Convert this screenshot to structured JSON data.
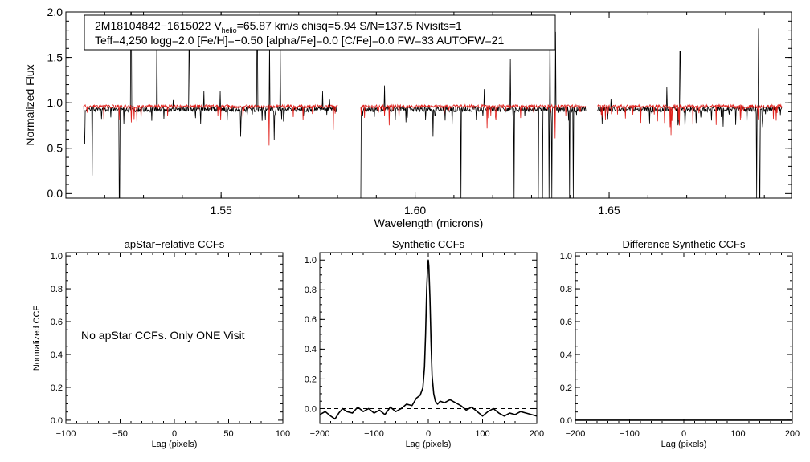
{
  "colors": {
    "observed": "#000000",
    "model": "#e0201b",
    "axis": "#000000"
  },
  "chart_data": [
    {
      "type": "line",
      "name": "spectrum",
      "xlabel": "Wavelength (microns)",
      "ylabel": "Normalized Flux",
      "xlim": [
        1.51,
        1.697
      ],
      "ylim": [
        -0.05,
        2.0
      ],
      "xticks": [
        1.55,
        1.6,
        1.65
      ],
      "xtick_labels": [
        "1.55",
        "1.60",
        "1.65"
      ],
      "yticks": [
        0.0,
        0.5,
        1.0,
        1.5,
        2.0
      ],
      "ytick_labels": [
        "0.0",
        "0.5",
        "1.0",
        "1.5",
        "2.0"
      ],
      "chips": [
        [
          1.5145,
          1.58
        ],
        [
          1.586,
          1.644
        ],
        [
          1.647,
          1.6945
        ]
      ],
      "info": {
        "line1_id": "2M18104842−1615022",
        "line1_v": "V",
        "line1_vsub": "helio",
        "line1_rest": "=65.87 km/s  chisq=5.94  S/N=137.5  Nvisits=1",
        "line2": "Teff=4,250 logg=2.0 [Fe/H]=−0.50 [alpha/Fe]=0.0 [C/Fe]=0.0 FW=33 AUTOFW=21"
      },
      "series": [
        {
          "name": "observed",
          "level": 0.93,
          "noise": 0.03,
          "spikes": [
            [
              1.5268,
              2.02
            ],
            [
              1.5335,
              1.95
            ],
            [
              1.5418,
              1.65
            ],
            [
              1.5593,
              1.72
            ],
            [
              1.5625,
              1.68
            ],
            [
              1.5652,
              1.63
            ],
            [
              1.6245,
              1.48
            ],
            [
              1.6348,
              1.96
            ],
            [
              1.6362,
              1.78
            ],
            [
              1.6683,
              1.57
            ],
            [
              1.6885,
              1.82
            ]
          ],
          "drops": [
            [
              1.5168,
              0.2
            ],
            [
              1.5148,
              0.55
            ],
            [
              1.5238,
              -0.05
            ],
            [
              1.586,
              -0.05
            ],
            [
              1.6118,
              -0.05
            ],
            [
              1.6255,
              -0.05
            ],
            [
              1.6318,
              -0.05
            ],
            [
              1.6328,
              -0.05
            ],
            [
              1.6345,
              -0.05
            ],
            [
              1.6352,
              -0.05
            ],
            [
              1.6398,
              -0.05
            ],
            [
              1.6408,
              -0.05
            ],
            [
              1.688,
              -0.05
            ],
            [
              1.6888,
              -0.05
            ]
          ]
        },
        {
          "name": "model",
          "level": 0.96,
          "noise": 0.018
        }
      ]
    },
    {
      "type": "line",
      "name": "apstar-ccf",
      "title": "apStar−relative CCFs",
      "xlabel": "Lag (pixels)",
      "ylabel": "Normalized CCF",
      "xlim": [
        -100,
        100
      ],
      "ylim": [
        -0.02,
        1.02
      ],
      "xticks": [
        -100,
        -50,
        0,
        50,
        100
      ],
      "xtick_labels": [
        "−100",
        "−50",
        "0",
        "50",
        "100"
      ],
      "yticks": [
        0.0,
        0.2,
        0.4,
        0.6,
        0.8,
        1.0
      ],
      "ytick_labels": [
        "0.0",
        "0.2",
        "0.4",
        "0.6",
        "0.8",
        "1.0"
      ],
      "message": "No apStar CCFs.  Only ONE Visit",
      "series": []
    },
    {
      "type": "line",
      "name": "synthetic-ccf",
      "title": "Synthetic CCFs",
      "xlabel": "Lag (pixels)",
      "ylabel": "",
      "xlim": [
        -200,
        200
      ],
      "ylim": [
        -0.1,
        1.05
      ],
      "xticks": [
        -200,
        -100,
        0,
        100,
        200
      ],
      "xtick_labels": [
        "−200",
        "−100",
        "0",
        "100",
        "200"
      ],
      "yticks": [
        0.0,
        0.2,
        0.4,
        0.6,
        0.8,
        1.0
      ],
      "ytick_labels": [
        "0.0",
        "0.2",
        "0.4",
        "0.6",
        "0.8",
        "1.0"
      ],
      "baseline": 0.0,
      "series": [
        {
          "name": "ccf",
          "x": [
            -200,
            -190,
            -180,
            -172,
            -165,
            -158,
            -150,
            -140,
            -130,
            -120,
            -110,
            -100,
            -90,
            -80,
            -70,
            -60,
            -50,
            -40,
            -30,
            -22,
            -15,
            -10,
            -7,
            -5,
            -3,
            -1,
            0,
            1,
            3,
            5,
            7,
            10,
            13,
            17,
            22,
            30,
            40,
            50,
            60,
            70,
            80,
            90,
            100,
            110,
            120,
            130,
            140,
            150,
            160,
            170,
            180,
            190,
            200
          ],
          "y": [
            -0.04,
            -0.02,
            -0.05,
            -0.07,
            -0.03,
            0.0,
            -0.02,
            -0.03,
            0.01,
            -0.02,
            0.0,
            -0.03,
            -0.01,
            -0.04,
            0.01,
            -0.02,
            0.0,
            0.03,
            0.02,
            0.07,
            0.09,
            0.14,
            0.28,
            0.5,
            0.8,
            0.97,
            1.0,
            0.96,
            0.75,
            0.45,
            0.22,
            0.1,
            0.05,
            0.03,
            0.05,
            0.04,
            0.06,
            0.04,
            0.02,
            -0.01,
            0.01,
            -0.02,
            -0.05,
            -0.02,
            0.0,
            -0.03,
            -0.05,
            -0.03,
            -0.04,
            -0.02,
            -0.03,
            -0.04,
            -0.05
          ]
        }
      ]
    },
    {
      "type": "line",
      "name": "difference-ccf",
      "title": "Difference Synthetic CCFs",
      "xlabel": "Lag (pixels)",
      "ylabel": "",
      "xlim": [
        -200,
        200
      ],
      "ylim": [
        -0.02,
        1.02
      ],
      "xticks": [
        -200,
        -100,
        0,
        100,
        200
      ],
      "xtick_labels": [
        "−200",
        "−100",
        "0",
        "100",
        "200"
      ],
      "yticks": [
        0.0,
        0.2,
        0.4,
        0.6,
        0.8,
        1.0
      ],
      "ytick_labels": [
        "0.0",
        "0.2",
        "0.4",
        "0.6",
        "0.8",
        "1.0"
      ],
      "series": [
        {
          "name": "difference",
          "x": [
            -200,
            200
          ],
          "y": [
            0.0,
            0.0
          ]
        }
      ]
    }
  ]
}
